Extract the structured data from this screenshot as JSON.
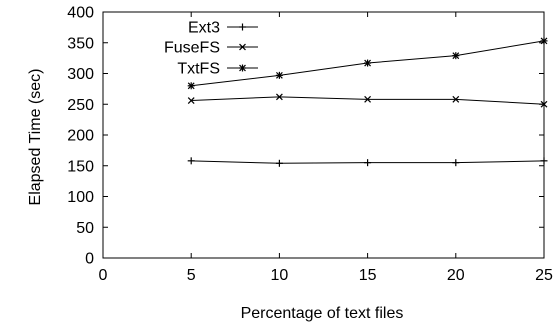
{
  "chart_data": {
    "type": "line",
    "title": "",
    "xlabel": "Percentage of text files",
    "ylabel": "Elapsed Time (sec)",
    "xlim": [
      0,
      25
    ],
    "ylim": [
      0,
      400
    ],
    "x_ticks": [
      0,
      5,
      10,
      15,
      20,
      25
    ],
    "y_ticks": [
      0,
      50,
      100,
      150,
      200,
      250,
      300,
      350,
      400
    ],
    "grid": false,
    "legend_position": "top-left",
    "x": [
      5,
      10,
      15,
      20,
      25
    ],
    "series": [
      {
        "name": "Ext3",
        "marker": "plus",
        "color": "#000000",
        "values": [
          158,
          154,
          155,
          155,
          158
        ]
      },
      {
        "name": "FuseFS",
        "marker": "cross",
        "color": "#000000",
        "values": [
          256,
          262,
          258,
          258,
          250
        ]
      },
      {
        "name": "TxtFS",
        "marker": "asterisk",
        "color": "#000000",
        "values": [
          280,
          297,
          317,
          329,
          353
        ]
      }
    ]
  }
}
